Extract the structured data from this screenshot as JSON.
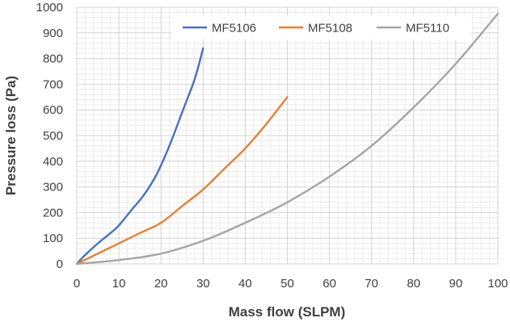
{
  "chart_data": {
    "type": "line",
    "title": "",
    "xlabel": "Mass flow (SLPM)",
    "ylabel": "Pressure  loss (Pa)",
    "xlim": [
      0,
      100
    ],
    "ylim": [
      0,
      1000
    ],
    "x_ticks": [
      "0",
      "10",
      "20",
      "30",
      "40",
      "50",
      "60",
      "70",
      "80",
      "90",
      "100"
    ],
    "y_ticks": [
      "0",
      "100",
      "200",
      "300",
      "400",
      "500",
      "600",
      "700",
      "800",
      "900",
      "1000"
    ],
    "grid": true,
    "legend_position": "top-right",
    "series": [
      {
        "name": "MF5106",
        "color": "#4472C4",
        "x": [
          0,
          2,
          5,
          8,
          10,
          13,
          16,
          19,
          22,
          25,
          28,
          30
        ],
        "y": [
          0,
          35,
          80,
          120,
          150,
          210,
          270,
          350,
          460,
          590,
          720,
          840
        ]
      },
      {
        "name": "MF5108",
        "color": "#ED7D31",
        "x": [
          0,
          5,
          10,
          15,
          20,
          25,
          30,
          35,
          40,
          45,
          50
        ],
        "y": [
          0,
          40,
          80,
          120,
          160,
          225,
          290,
          370,
          450,
          545,
          650
        ]
      },
      {
        "name": "MF5110",
        "color": "#A5A5A5",
        "x": [
          0,
          10,
          20,
          30,
          40,
          50,
          60,
          70,
          80,
          90,
          100
        ],
        "y": [
          0,
          15,
          40,
          90,
          160,
          240,
          340,
          460,
          610,
          780,
          975
        ]
      }
    ]
  }
}
